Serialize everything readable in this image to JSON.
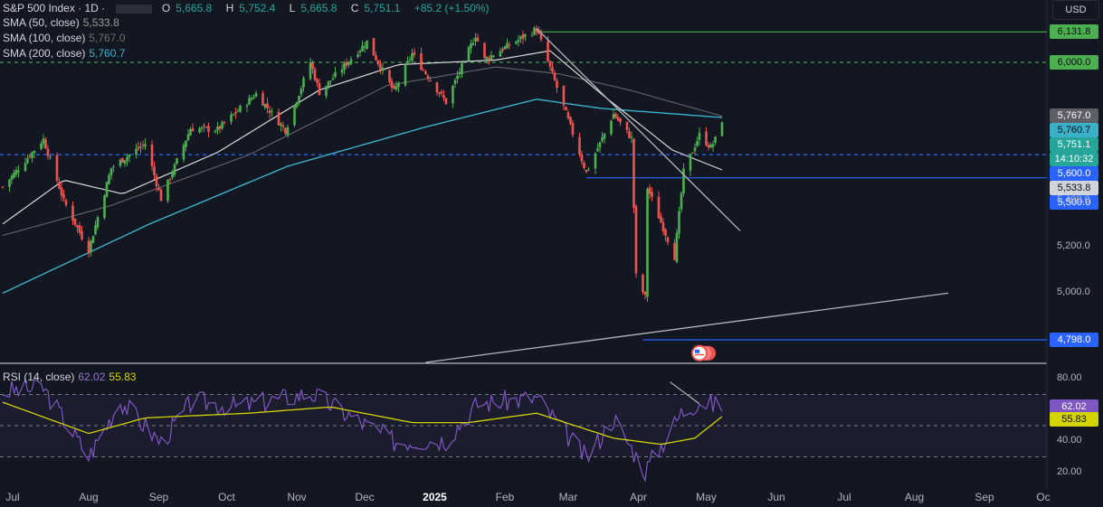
{
  "header": {
    "symbol": "S&P 500 Index · 1D ·",
    "ohlc": [
      {
        "k": "O",
        "v": "5,665.8"
      },
      {
        "k": "H",
        "v": "5,752.4"
      },
      {
        "k": "L",
        "v": "5,665.8"
      },
      {
        "k": "C",
        "v": "5,751.1"
      },
      {
        "k": "",
        "v": "+85.2 (+1.50%)"
      }
    ],
    "sma50": {
      "label": "SMA (50, close)",
      "value": "5,533.8"
    },
    "sma100": {
      "label": "SMA (100, close)",
      "value": "5,767.0"
    },
    "sma200": {
      "label": "SMA (200, close)",
      "value": "5,760.7"
    },
    "rsi": {
      "label": "RSI (14, close)",
      "value": "62.02",
      "ma": "55.83"
    }
  },
  "currency": "USD",
  "colors": {
    "background": "#131722",
    "up": "#26a69a",
    "up_candle": "#4caf50",
    "down": "#ef5350",
    "sma50": "#808080",
    "sma100": "#d9d9d9",
    "sma200": "#3bb0c8",
    "rsi": "#7e57c2",
    "rsi_ma": "#d4d400",
    "green_level": "#4caf50",
    "blue_level": "#2962ff"
  },
  "price_axis": {
    "ticks": [
      "5,400.0",
      "5,200.0",
      "5,000.0"
    ]
  },
  "price_badges": [
    {
      "value": "6,131.8",
      "kind": "green"
    },
    {
      "value": "6,000.0",
      "kind": "green"
    },
    {
      "value": "5,767.0",
      "kind": "gray"
    },
    {
      "value": "5,760.7",
      "kind": "cyan"
    },
    {
      "value": "5,751.1",
      "kind": "close"
    },
    {
      "value": "14:10:32",
      "kind": "close"
    },
    {
      "value": "5,600.0",
      "kind": "blue"
    },
    {
      "value": "5,533.8",
      "kind": "light"
    },
    {
      "value": "5,500.0",
      "kind": "blue"
    },
    {
      "value": "4,798.0",
      "kind": "blue"
    }
  ],
  "rsi_axis": {
    "ticks": [
      "80.00",
      "40.00",
      "20.00"
    ],
    "badges": [
      {
        "value": "62.02",
        "kind": "purple"
      },
      {
        "value": "55.83",
        "kind": "yellow"
      }
    ]
  },
  "time_axis": [
    {
      "label": "Jul",
      "bold": false
    },
    {
      "label": "Aug",
      "bold": false
    },
    {
      "label": "Sep",
      "bold": false
    },
    {
      "label": "Oct",
      "bold": false
    },
    {
      "label": "Nov",
      "bold": false
    },
    {
      "label": "Dec",
      "bold": false
    },
    {
      "label": "2025",
      "bold": true
    },
    {
      "label": "Feb",
      "bold": false
    },
    {
      "label": "Mar",
      "bold": false
    },
    {
      "label": "Apr",
      "bold": false
    },
    {
      "label": "May",
      "bold": false
    },
    {
      "label": "Jun",
      "bold": false
    },
    {
      "label": "Jul",
      "bold": false
    },
    {
      "label": "Aug",
      "bold": false
    },
    {
      "label": "Sep",
      "bold": false
    },
    {
      "label": "Oc",
      "bold": false
    }
  ],
  "chart_data": {
    "type": "candlestick",
    "title": "S&P 500 Index · 1D",
    "ylim": [
      4700,
      6270
    ],
    "rsi_ylim": [
      10,
      90
    ],
    "horizontal_levels": [
      {
        "value": 6131.8,
        "style": "solid",
        "color": "green",
        "from": "2025-02-19"
      },
      {
        "value": 6000.0,
        "style": "dashed",
        "color": "green"
      },
      {
        "value": 5600.0,
        "style": "dashed",
        "color": "blue"
      },
      {
        "value": 5500.0,
        "style": "solid",
        "color": "blue",
        "from": "2025-03-13"
      },
      {
        "value": 4798.0,
        "style": "solid",
        "color": "blue",
        "from": "2025-04-07"
      }
    ],
    "trendlines": [
      {
        "from": [
          "2025-02-19",
          6147
        ],
        "to": [
          "2025-05-20",
          5270
        ]
      },
      {
        "from": [
          "2025-01-01",
          4700
        ],
        "to": [
          "2025-08-20",
          5000
        ]
      }
    ],
    "price_path": [
      [
        "2024-06-28",
        5460
      ],
      [
        "2024-07-16",
        5667
      ],
      [
        "2024-07-25",
        5400
      ],
      [
        "2024-08-05",
        5186
      ],
      [
        "2024-08-15",
        5543
      ],
      [
        "2024-08-30",
        5648
      ],
      [
        "2024-09-06",
        5408
      ],
      [
        "2024-09-19",
        5713
      ],
      [
        "2024-10-01",
        5709
      ],
      [
        "2024-10-18",
        5864
      ],
      [
        "2024-10-31",
        5705
      ],
      [
        "2024-11-11",
        6001
      ],
      [
        "2024-11-15",
        5870
      ],
      [
        "2024-12-06",
        6090
      ],
      [
        "2024-12-18",
        5872
      ],
      [
        "2024-12-26",
        6037
      ],
      [
        "2025-01-10",
        5827
      ],
      [
        "2025-01-23",
        6118
      ],
      [
        "2025-01-27",
        6012
      ],
      [
        "2025-02-19",
        6144
      ],
      [
        "2025-03-04",
        5778
      ],
      [
        "2025-03-13",
        5521
      ],
      [
        "2025-03-25",
        5776
      ],
      [
        "2025-04-02",
        5670
      ],
      [
        "2025-04-04",
        5074
      ],
      [
        "2025-04-08",
        4982
      ],
      [
        "2025-04-09",
        5456
      ],
      [
        "2025-04-21",
        5158
      ],
      [
        "2025-04-25",
        5525
      ],
      [
        "2025-05-02",
        5686
      ],
      [
        "2025-05-07",
        5631
      ],
      [
        "2025-05-09",
        5666
      ],
      [
        "2025-05-12",
        5751
      ]
    ],
    "sma200_path": [
      [
        "2024-06-28",
        5000
      ],
      [
        "2024-09-01",
        5300
      ],
      [
        "2024-11-01",
        5550
      ],
      [
        "2025-01-01",
        5720
      ],
      [
        "2025-02-19",
        5840
      ],
      [
        "2025-03-20",
        5800
      ],
      [
        "2025-05-12",
        5761
      ]
    ],
    "sma100_path": [
      [
        "2024-06-28",
        5250
      ],
      [
        "2024-08-15",
        5380
      ],
      [
        "2024-10-15",
        5600
      ],
      [
        "2024-12-15",
        5900
      ],
      [
        "2025-02-01",
        5980
      ],
      [
        "2025-03-01",
        5950
      ],
      [
        "2025-04-01",
        5880
      ],
      [
        "2025-05-12",
        5767
      ]
    ],
    "sma50_path": [
      [
        "2024-06-28",
        5300
      ],
      [
        "2024-07-25",
        5490
      ],
      [
        "2024-08-20",
        5430
      ],
      [
        "2024-10-01",
        5610
      ],
      [
        "2024-11-15",
        5880
      ],
      [
        "2024-12-20",
        5990
      ],
      [
        "2025-02-01",
        6010
      ],
      [
        "2025-02-25",
        6050
      ],
      [
        "2025-03-20",
        5860
      ],
      [
        "2025-04-20",
        5620
      ],
      [
        "2025-05-12",
        5534
      ]
    ],
    "rsi_path": [
      [
        "2024-06-28",
        72
      ],
      [
        "2024-07-16",
        74
      ],
      [
        "2024-08-05",
        30
      ],
      [
        "2024-08-19",
        66
      ],
      [
        "2024-09-06",
        39
      ],
      [
        "2024-09-20",
        66
      ],
      [
        "2024-10-10",
        62
      ],
      [
        "2024-11-11",
        71
      ],
      [
        "2024-12-18",
        40
      ],
      [
        "2025-01-10",
        41
      ],
      [
        "2025-01-24",
        64
      ],
      [
        "2025-02-19",
        68
      ],
      [
        "2025-03-13",
        29
      ],
      [
        "2025-03-25",
        55
      ],
      [
        "2025-04-08",
        21
      ],
      [
        "2025-04-24",
        58
      ],
      [
        "2025-05-02",
        66
      ],
      [
        "2025-05-12",
        62
      ]
    ],
    "rsi_ma_path": [
      [
        "2024-06-28",
        65
      ],
      [
        "2024-08-05",
        45
      ],
      [
        "2024-08-30",
        55
      ],
      [
        "2024-10-15",
        58
      ],
      [
        "2024-11-20",
        62
      ],
      [
        "2024-12-26",
        52
      ],
      [
        "2025-01-20",
        52
      ],
      [
        "2025-02-19",
        58
      ],
      [
        "2025-03-25",
        42
      ],
      [
        "2025-04-15",
        38
      ],
      [
        "2025-04-30",
        42
      ],
      [
        "2025-05-12",
        55.83
      ]
    ],
    "rsi_levels": [
      70,
      50,
      30
    ]
  }
}
